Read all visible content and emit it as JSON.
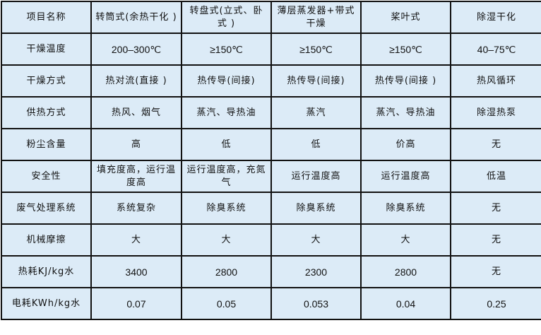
{
  "table": {
    "header": [
      "项目名称",
      "转筒式(余热干化 )",
      "转盘式(立式、卧式 )",
      "薄层蒸发器+带式干燥",
      "桨叶式",
      "除湿干化"
    ],
    "rows": [
      [
        "干燥温度",
        "200–300℃",
        "≥150℃",
        "≥150℃",
        "≥150℃",
        "40–75℃"
      ],
      [
        "干燥方式",
        "热对流(直接 )",
        "热传导(间接)",
        "热传导(间接)",
        "热传导(间接 )",
        "热风循环"
      ],
      [
        "供热方式",
        "热风、烟气",
        "蒸汽、导热油",
        "蒸汽",
        "蒸汽、导热油",
        "除湿热泵"
      ],
      [
        "粉尘含量",
        "高",
        "低",
        "低",
        "价高",
        "无"
      ],
      [
        "安全性",
        "填充度高，运行温度高",
        "运行温度高，充氮气",
        "运行温度高",
        "运行温度高",
        "低温"
      ],
      [
        "废气处理系统",
        "系统复杂",
        "除臭系统",
        "除臭系统",
        "除臭系统",
        "无"
      ],
      [
        "机械摩擦",
        "大",
        "大",
        "大",
        "大",
        "无"
      ],
      [
        "热耗KJ/kg水",
        "3400",
        "2800",
        "2300",
        "2800",
        "无"
      ],
      [
        "电耗KWh/kg水",
        "0.07",
        "0.05",
        "0.053",
        "0.04",
        "0.25"
      ]
    ]
  }
}
